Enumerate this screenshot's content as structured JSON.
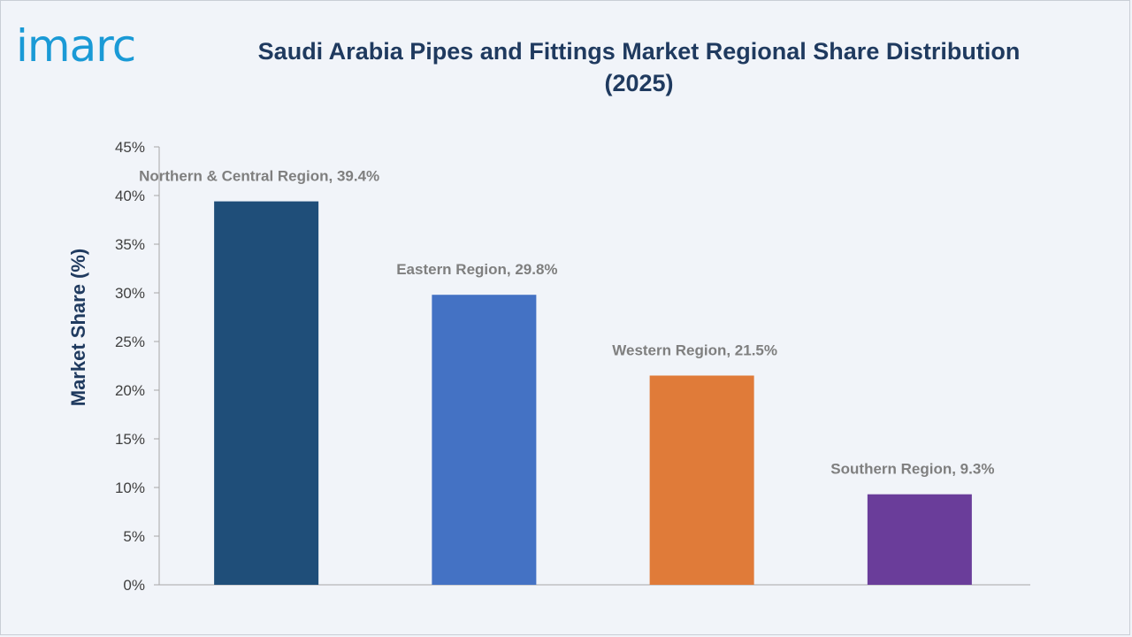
{
  "brand": {
    "logo_text": "imarc",
    "logo_color": "#1a9ad6"
  },
  "chart_data": {
    "type": "bar",
    "title": "Saudi Arabia Pipes and Fittings Market Regional Share Distribution (2025)",
    "xlabel": "",
    "ylabel": "Market Share (%)",
    "ylim": [
      0,
      45
    ],
    "yticks": [
      0,
      5,
      10,
      15,
      20,
      25,
      30,
      35,
      40,
      45
    ],
    "ytick_labels": [
      "0%",
      "5%",
      "10%",
      "15%",
      "20%",
      "25%",
      "30%",
      "35%",
      "40%",
      "45%"
    ],
    "categories": [
      "Northern & Central Region",
      "Eastern Region",
      "Western Region",
      "Southern Region"
    ],
    "values": [
      39.4,
      29.8,
      21.5,
      9.3
    ],
    "data_labels": [
      "Northern & Central Region, 39.4%",
      "Eastern Region, 29.8%",
      "Western Region, 21.5%",
      "Southern Region, 9.3%"
    ],
    "colors": [
      "#1f4e79",
      "#4472c4",
      "#e07b39",
      "#6a3d9a"
    ],
    "grid": false,
    "legend": "none"
  }
}
